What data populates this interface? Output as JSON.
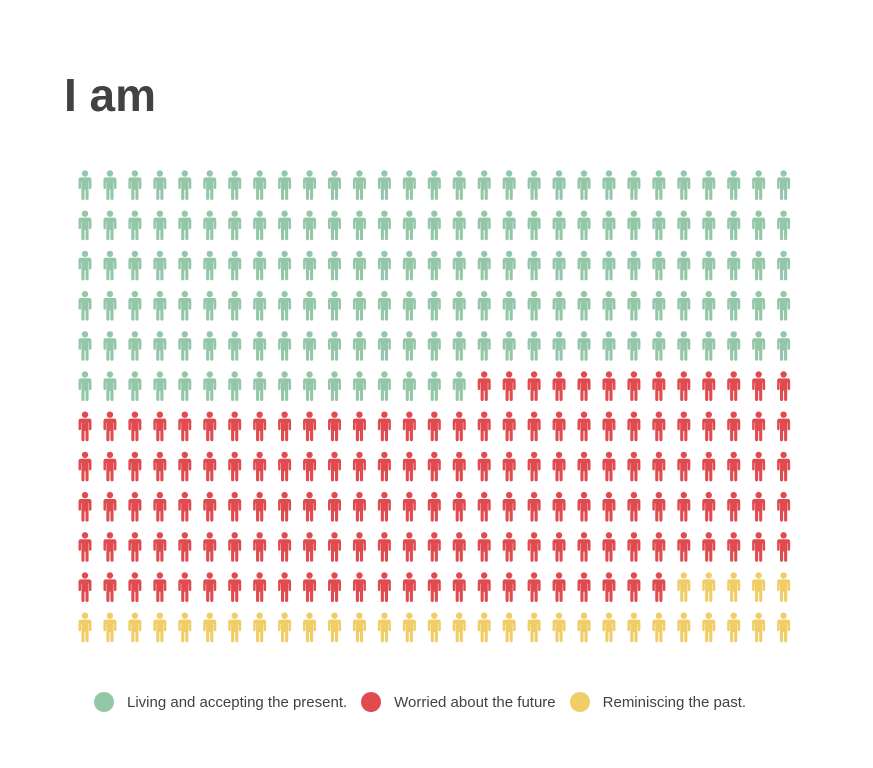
{
  "title": "I am",
  "colors": {
    "present": "#93c7a8",
    "future": "#e04b4f",
    "past": "#f0cd66",
    "text": "#424242"
  },
  "chart_data": {
    "type": "pictogram",
    "icon": "person-icon",
    "columns": 29,
    "rows": 12,
    "total": 348,
    "series": [
      {
        "name": "Living and accepting the present.",
        "value": 161,
        "color": "#93c7a8"
      },
      {
        "name": "Worried about the future",
        "value": 153,
        "color": "#e04b4f"
      },
      {
        "name": "Reminiscing the past.",
        "value": 34,
        "color": "#f0cd66"
      }
    ],
    "legend_position": "bottom"
  },
  "legend": [
    {
      "label": "Living and accepting the present.",
      "color": "#93c7a8"
    },
    {
      "label": "Worried about the future",
      "color": "#e04b4f"
    },
    {
      "label": "Reminiscing the past.",
      "color": "#f0cd66"
    }
  ]
}
